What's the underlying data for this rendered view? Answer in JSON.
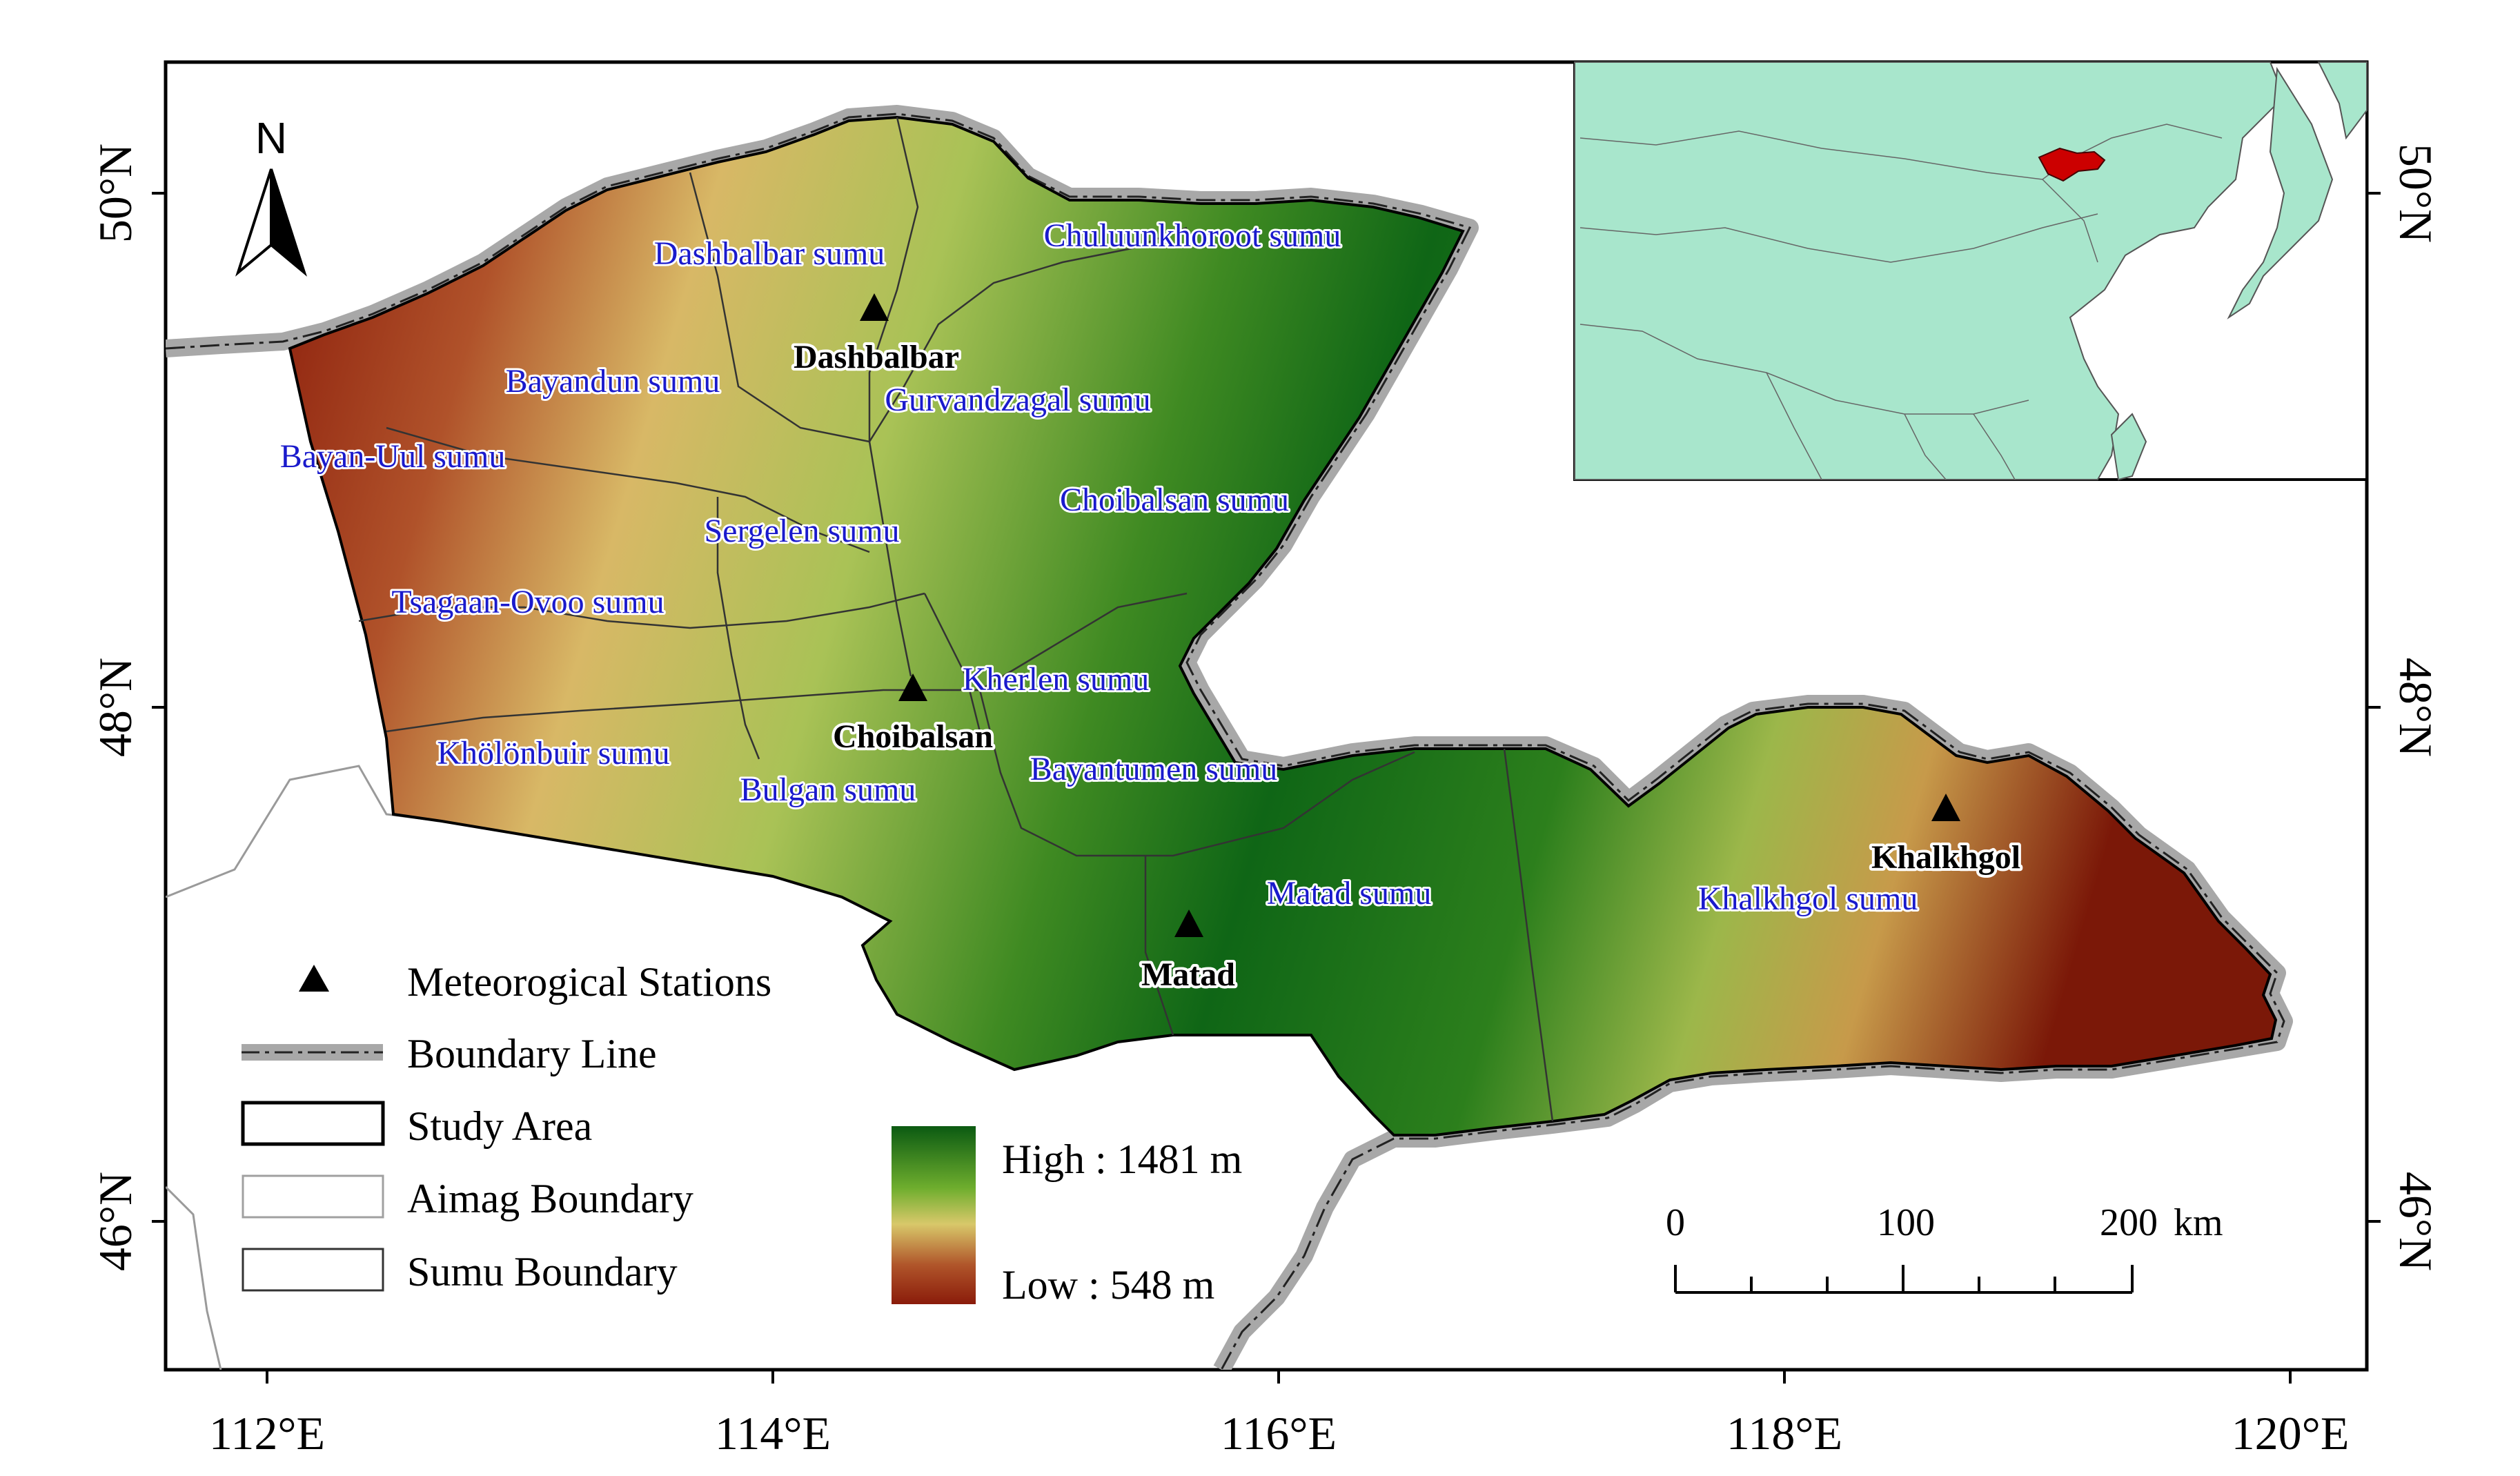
{
  "north_arrow": {
    "label": "N"
  },
  "axes": {
    "x_ticks": [
      "112°E",
      "114°E",
      "116°E",
      "118°E",
      "120°E"
    ],
    "y_ticks_left": [
      "50°N",
      "48°N",
      "46°N"
    ],
    "y_ticks_right": [
      "50°N",
      "48°N",
      "46°N"
    ]
  },
  "sumu_labels": [
    "Dashbalbar sumu",
    "Chuluunkhoroot sumu",
    "Bayandun sumu",
    "Gurvandzagal sumu",
    "Bayan-Uul sumu",
    "Choibalsan sumu",
    "Sergelen sumu",
    "Tsagaan-Ovoo sumu",
    "Kherlen sumu",
    "Khölönbuir sumu",
    "Bayantumen sumu",
    "Bulgan sumu",
    "Matad sumu",
    "Khalkhgol sumu"
  ],
  "stations": [
    "Dashbalbar",
    "Choibalsan",
    "Matad",
    "Khalkhgol"
  ],
  "legend": {
    "items": [
      "Meteorogical Stations",
      "Boundary Line",
      "Study Area",
      "Aimag Boundary",
      "Sumu Boundary"
    ],
    "elevation_high": "High : 1481 m",
    "elevation_low": "Low : 548 m"
  },
  "scale_bar": {
    "labels": [
      "0",
      "100",
      "200"
    ],
    "unit": "km"
  },
  "colors": {
    "elevation_high": "#0b5a12",
    "elevation_mid": "#6fae2e",
    "elevation_mid_low": "#d8c86a",
    "elevation_low": "#8a1b0a",
    "boundary_line": "#a8a8a8",
    "inset_land": "#a8e6cc",
    "inset_highlight": "#cc0000",
    "sumu_label": "#1a1acc"
  }
}
